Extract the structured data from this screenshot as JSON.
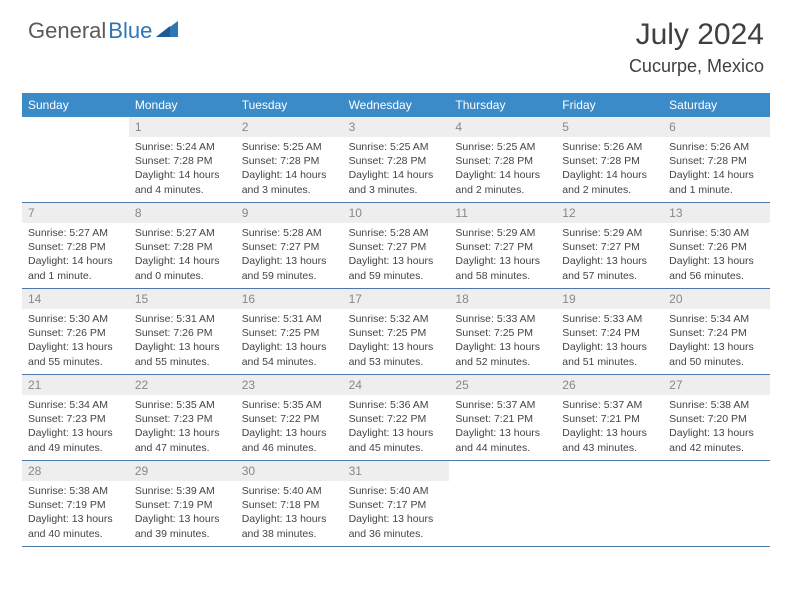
{
  "branding": {
    "word1": "General",
    "word2": "Blue",
    "word1_color": "#5a5a5a",
    "word2_color": "#2e75b6",
    "logo_fontsize": 22,
    "icon_fill": "#2e75b6"
  },
  "title": {
    "month": "July 2024",
    "location": "Cucurpe, Mexico",
    "month_fontsize": 30,
    "location_fontsize": 18,
    "color": "#404040"
  },
  "colors": {
    "header_bg": "#3b8bc9",
    "header_text": "#ffffff",
    "daynum_bg": "#eeeeee",
    "daynum_text": "#888888",
    "cell_text": "#444444",
    "cell_border": "#4a7aa8",
    "page_bg": "#ffffff"
  },
  "layout": {
    "columns": 7,
    "rows": 5,
    "cell_fontsize": 10.5,
    "header_fontsize": 12
  },
  "day_names": [
    "Sunday",
    "Monday",
    "Tuesday",
    "Wednesday",
    "Thursday",
    "Friday",
    "Saturday"
  ],
  "weeks": [
    [
      {
        "blank": true
      },
      {
        "n": "1",
        "sr": "Sunrise: 5:24 AM",
        "ss": "Sunset: 7:28 PM",
        "d1": "Daylight: 14 hours",
        "d2": "and 4 minutes."
      },
      {
        "n": "2",
        "sr": "Sunrise: 5:25 AM",
        "ss": "Sunset: 7:28 PM",
        "d1": "Daylight: 14 hours",
        "d2": "and 3 minutes."
      },
      {
        "n": "3",
        "sr": "Sunrise: 5:25 AM",
        "ss": "Sunset: 7:28 PM",
        "d1": "Daylight: 14 hours",
        "d2": "and 3 minutes."
      },
      {
        "n": "4",
        "sr": "Sunrise: 5:25 AM",
        "ss": "Sunset: 7:28 PM",
        "d1": "Daylight: 14 hours",
        "d2": "and 2 minutes."
      },
      {
        "n": "5",
        "sr": "Sunrise: 5:26 AM",
        "ss": "Sunset: 7:28 PM",
        "d1": "Daylight: 14 hours",
        "d2": "and 2 minutes."
      },
      {
        "n": "6",
        "sr": "Sunrise: 5:26 AM",
        "ss": "Sunset: 7:28 PM",
        "d1": "Daylight: 14 hours",
        "d2": "and 1 minute."
      }
    ],
    [
      {
        "n": "7",
        "sr": "Sunrise: 5:27 AM",
        "ss": "Sunset: 7:28 PM",
        "d1": "Daylight: 14 hours",
        "d2": "and 1 minute."
      },
      {
        "n": "8",
        "sr": "Sunrise: 5:27 AM",
        "ss": "Sunset: 7:28 PM",
        "d1": "Daylight: 14 hours",
        "d2": "and 0 minutes."
      },
      {
        "n": "9",
        "sr": "Sunrise: 5:28 AM",
        "ss": "Sunset: 7:27 PM",
        "d1": "Daylight: 13 hours",
        "d2": "and 59 minutes."
      },
      {
        "n": "10",
        "sr": "Sunrise: 5:28 AM",
        "ss": "Sunset: 7:27 PM",
        "d1": "Daylight: 13 hours",
        "d2": "and 59 minutes."
      },
      {
        "n": "11",
        "sr": "Sunrise: 5:29 AM",
        "ss": "Sunset: 7:27 PM",
        "d1": "Daylight: 13 hours",
        "d2": "and 58 minutes."
      },
      {
        "n": "12",
        "sr": "Sunrise: 5:29 AM",
        "ss": "Sunset: 7:27 PM",
        "d1": "Daylight: 13 hours",
        "d2": "and 57 minutes."
      },
      {
        "n": "13",
        "sr": "Sunrise: 5:30 AM",
        "ss": "Sunset: 7:26 PM",
        "d1": "Daylight: 13 hours",
        "d2": "and 56 minutes."
      }
    ],
    [
      {
        "n": "14",
        "sr": "Sunrise: 5:30 AM",
        "ss": "Sunset: 7:26 PM",
        "d1": "Daylight: 13 hours",
        "d2": "and 55 minutes."
      },
      {
        "n": "15",
        "sr": "Sunrise: 5:31 AM",
        "ss": "Sunset: 7:26 PM",
        "d1": "Daylight: 13 hours",
        "d2": "and 55 minutes."
      },
      {
        "n": "16",
        "sr": "Sunrise: 5:31 AM",
        "ss": "Sunset: 7:25 PM",
        "d1": "Daylight: 13 hours",
        "d2": "and 54 minutes."
      },
      {
        "n": "17",
        "sr": "Sunrise: 5:32 AM",
        "ss": "Sunset: 7:25 PM",
        "d1": "Daylight: 13 hours",
        "d2": "and 53 minutes."
      },
      {
        "n": "18",
        "sr": "Sunrise: 5:33 AM",
        "ss": "Sunset: 7:25 PM",
        "d1": "Daylight: 13 hours",
        "d2": "and 52 minutes."
      },
      {
        "n": "19",
        "sr": "Sunrise: 5:33 AM",
        "ss": "Sunset: 7:24 PM",
        "d1": "Daylight: 13 hours",
        "d2": "and 51 minutes."
      },
      {
        "n": "20",
        "sr": "Sunrise: 5:34 AM",
        "ss": "Sunset: 7:24 PM",
        "d1": "Daylight: 13 hours",
        "d2": "and 50 minutes."
      }
    ],
    [
      {
        "n": "21",
        "sr": "Sunrise: 5:34 AM",
        "ss": "Sunset: 7:23 PM",
        "d1": "Daylight: 13 hours",
        "d2": "and 49 minutes."
      },
      {
        "n": "22",
        "sr": "Sunrise: 5:35 AM",
        "ss": "Sunset: 7:23 PM",
        "d1": "Daylight: 13 hours",
        "d2": "and 47 minutes."
      },
      {
        "n": "23",
        "sr": "Sunrise: 5:35 AM",
        "ss": "Sunset: 7:22 PM",
        "d1": "Daylight: 13 hours",
        "d2": "and 46 minutes."
      },
      {
        "n": "24",
        "sr": "Sunrise: 5:36 AM",
        "ss": "Sunset: 7:22 PM",
        "d1": "Daylight: 13 hours",
        "d2": "and 45 minutes."
      },
      {
        "n": "25",
        "sr": "Sunrise: 5:37 AM",
        "ss": "Sunset: 7:21 PM",
        "d1": "Daylight: 13 hours",
        "d2": "and 44 minutes."
      },
      {
        "n": "26",
        "sr": "Sunrise: 5:37 AM",
        "ss": "Sunset: 7:21 PM",
        "d1": "Daylight: 13 hours",
        "d2": "and 43 minutes."
      },
      {
        "n": "27",
        "sr": "Sunrise: 5:38 AM",
        "ss": "Sunset: 7:20 PM",
        "d1": "Daylight: 13 hours",
        "d2": "and 42 minutes."
      }
    ],
    [
      {
        "n": "28",
        "sr": "Sunrise: 5:38 AM",
        "ss": "Sunset: 7:19 PM",
        "d1": "Daylight: 13 hours",
        "d2": "and 40 minutes."
      },
      {
        "n": "29",
        "sr": "Sunrise: 5:39 AM",
        "ss": "Sunset: 7:19 PM",
        "d1": "Daylight: 13 hours",
        "d2": "and 39 minutes."
      },
      {
        "n": "30",
        "sr": "Sunrise: 5:40 AM",
        "ss": "Sunset: 7:18 PM",
        "d1": "Daylight: 13 hours",
        "d2": "and 38 minutes."
      },
      {
        "n": "31",
        "sr": "Sunrise: 5:40 AM",
        "ss": "Sunset: 7:17 PM",
        "d1": "Daylight: 13 hours",
        "d2": "and 36 minutes."
      },
      {
        "blank": true
      },
      {
        "blank": true
      },
      {
        "blank": true
      }
    ]
  ]
}
